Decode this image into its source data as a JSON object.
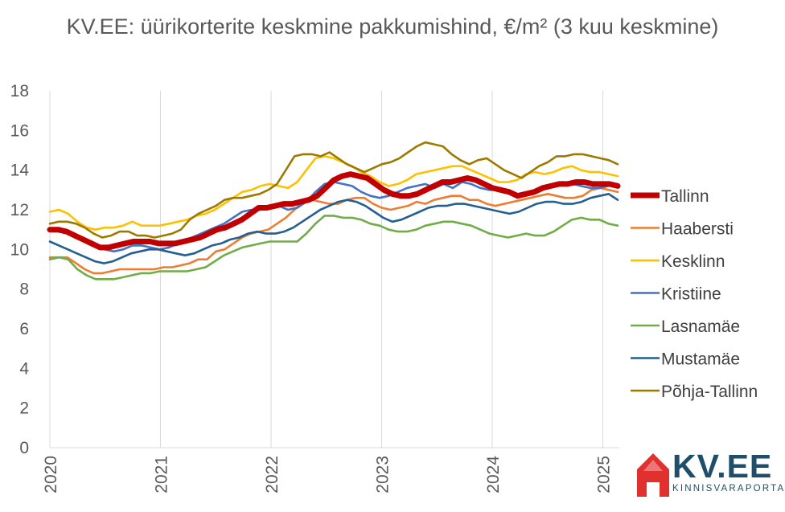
{
  "logo": {
    "name": "KV.EE",
    "tagline": "KINNISVARAPORTAAL"
  },
  "chart_data": {
    "type": "line",
    "title": "KV.EE: üürikorterite keskmine pakkumishind, €/m² (3 kuu keskmine)",
    "xlabel": "",
    "ylabel": "",
    "ylim": [
      0,
      18
    ],
    "yticks": [
      "0",
      "2",
      "4",
      "6",
      "8",
      "10",
      "12",
      "14",
      "16",
      "18"
    ],
    "xticks": [
      "2020",
      "2021",
      "2022",
      "2023",
      "2024",
      "2025"
    ],
    "grid": "vertical",
    "legend": "right",
    "x_start": "2020-01",
    "x_end": "2025-03",
    "series": [
      {
        "name": "Tallinn",
        "color": "#c00000",
        "values": [
          11.0,
          11.0,
          10.9,
          10.7,
          10.5,
          10.3,
          10.1,
          10.1,
          10.2,
          10.3,
          10.4,
          10.4,
          10.4,
          10.3,
          10.3,
          10.3,
          10.4,
          10.5,
          10.6,
          10.8,
          11.0,
          11.1,
          11.3,
          11.5,
          11.8,
          12.1,
          12.1,
          12.2,
          12.3,
          12.3,
          12.4,
          12.5,
          12.7,
          13.1,
          13.5,
          13.7,
          13.8,
          13.7,
          13.6,
          13.3,
          13.0,
          12.8,
          12.7,
          12.7,
          12.8,
          13.0,
          13.2,
          13.4,
          13.4,
          13.5,
          13.6,
          13.5,
          13.3,
          13.1,
          13.0,
          12.9,
          12.7,
          12.8,
          12.9,
          13.1,
          13.2,
          13.3,
          13.3,
          13.4,
          13.4,
          13.3,
          13.3,
          13.3,
          13.2
        ]
      },
      {
        "name": "Haabersti",
        "color": "#ed7d31",
        "values": [
          9.6,
          9.6,
          9.6,
          9.3,
          9.0,
          8.8,
          8.8,
          8.9,
          9.0,
          9.0,
          9.0,
          9.0,
          9.0,
          9.1,
          9.1,
          9.2,
          9.3,
          9.5,
          9.5,
          9.9,
          10.0,
          10.3,
          10.6,
          10.8,
          10.9,
          11.0,
          11.3,
          11.6,
          12.0,
          12.4,
          12.5,
          12.4,
          12.3,
          12.3,
          12.5,
          12.6,
          12.6,
          12.3,
          12.1,
          12.0,
          12.1,
          12.2,
          12.4,
          12.3,
          12.5,
          12.6,
          12.7,
          12.7,
          12.5,
          12.5,
          12.3,
          12.2,
          12.3,
          12.4,
          12.5,
          12.6,
          12.7,
          12.8,
          12.7,
          12.6,
          12.6,
          12.7,
          13.0,
          13.1,
          13.0,
          12.9
        ]
      },
      {
        "name": "Kesklinn",
        "color": "#ffc000",
        "values": [
          11.9,
          12.0,
          11.8,
          11.4,
          11.1,
          11.0,
          11.1,
          11.1,
          11.2,
          11.4,
          11.2,
          11.2,
          11.2,
          11.3,
          11.4,
          11.5,
          11.7,
          11.8,
          12.0,
          12.3,
          12.6,
          12.9,
          13.0,
          13.2,
          13.3,
          13.2,
          13.1,
          13.4,
          14.0,
          14.6,
          14.7,
          14.6,
          14.4,
          14.2,
          13.9,
          13.7,
          13.4,
          13.2,
          13.3,
          13.5,
          13.8,
          13.9,
          14.0,
          14.1,
          14.2,
          14.2,
          14.0,
          13.8,
          13.6,
          13.4,
          13.4,
          13.5,
          13.8,
          13.9,
          13.8,
          13.9,
          14.1,
          14.2,
          14.0,
          13.9,
          13.9,
          13.8,
          13.7
        ]
      },
      {
        "name": "Kristiine",
        "color": "#4472c4",
        "values": [
          11.0,
          10.9,
          10.8,
          10.6,
          10.4,
          10.2,
          10.0,
          9.9,
          10.0,
          10.2,
          10.2,
          10.1,
          10.0,
          10.1,
          10.3,
          10.5,
          10.7,
          10.9,
          11.1,
          11.3,
          11.6,
          11.9,
          12.0,
          12.0,
          12.1,
          12.2,
          12.0,
          12.1,
          12.4,
          12.9,
          13.3,
          13.4,
          13.3,
          13.2,
          12.9,
          12.7,
          12.6,
          12.7,
          12.9,
          13.1,
          13.2,
          13.3,
          13.1,
          13.3,
          13.1,
          13.4,
          13.3,
          13.1,
          13.0,
          13.0,
          12.9,
          12.8,
          12.8,
          12.9,
          13.1,
          13.2,
          13.4,
          13.3,
          13.2,
          13.1,
          13.1,
          13.2,
          13.3
        ]
      },
      {
        "name": "Lasnamäe",
        "color": "#70ad47",
        "values": [
          9.5,
          9.6,
          9.5,
          9.0,
          8.7,
          8.5,
          8.5,
          8.5,
          8.6,
          8.7,
          8.8,
          8.8,
          8.9,
          8.9,
          8.9,
          8.9,
          9.0,
          9.1,
          9.4,
          9.7,
          9.9,
          10.1,
          10.2,
          10.3,
          10.4,
          10.4,
          10.4,
          10.4,
          10.8,
          11.3,
          11.7,
          11.7,
          11.6,
          11.6,
          11.5,
          11.3,
          11.2,
          11.0,
          10.9,
          10.9,
          11.0,
          11.2,
          11.3,
          11.4,
          11.4,
          11.3,
          11.2,
          11.0,
          10.8,
          10.7,
          10.6,
          10.7,
          10.8,
          10.7,
          10.7,
          10.9,
          11.2,
          11.5,
          11.6,
          11.5,
          11.5,
          11.3,
          11.2
        ]
      },
      {
        "name": "Mustamäe",
        "color": "#255e91",
        "values": [
          10.4,
          10.2,
          10.0,
          9.8,
          9.6,
          9.4,
          9.3,
          9.4,
          9.6,
          9.8,
          9.9,
          10.0,
          10.0,
          9.9,
          9.8,
          9.7,
          9.8,
          10.0,
          10.2,
          10.3,
          10.5,
          10.6,
          10.8,
          10.9,
          10.8,
          10.8,
          10.9,
          11.1,
          11.4,
          11.7,
          12.0,
          12.2,
          12.4,
          12.5,
          12.4,
          12.2,
          11.9,
          11.6,
          11.4,
          11.5,
          11.7,
          11.9,
          12.1,
          12.2,
          12.2,
          12.3,
          12.3,
          12.2,
          12.1,
          12.0,
          11.9,
          11.8,
          11.9,
          12.1,
          12.3,
          12.4,
          12.4,
          12.3,
          12.3,
          12.4,
          12.6,
          12.7,
          12.8,
          12.5
        ]
      },
      {
        "name": "Põhja-Tallinn",
        "color": "#9c7a00",
        "values": [
          11.3,
          11.4,
          11.4,
          11.3,
          11.1,
          10.8,
          10.6,
          10.7,
          10.9,
          10.9,
          10.7,
          10.7,
          10.6,
          10.7,
          10.8,
          11.0,
          11.5,
          11.8,
          12.0,
          12.2,
          12.5,
          12.6,
          12.6,
          12.7,
          12.8,
          13.0,
          13.3,
          14.0,
          14.7,
          14.8,
          14.8,
          14.7,
          14.9,
          14.6,
          14.3,
          14.1,
          13.9,
          14.1,
          14.3,
          14.4,
          14.6,
          14.9,
          15.2,
          15.4,
          15.3,
          15.2,
          14.8,
          14.5,
          14.3,
          14.5,
          14.6,
          14.3,
          14.0,
          13.8,
          13.6,
          13.9,
          14.2,
          14.4,
          14.7,
          14.7,
          14.8,
          14.8,
          14.7,
          14.6,
          14.5,
          14.3
        ]
      }
    ]
  }
}
